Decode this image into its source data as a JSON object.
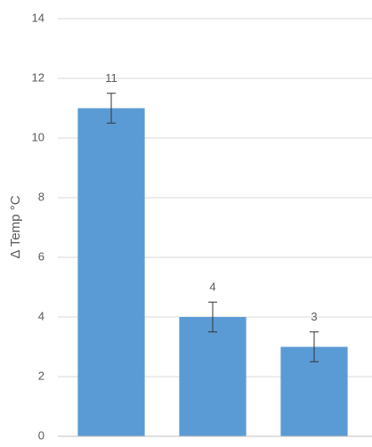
{
  "chart_data": {
    "type": "bar",
    "y_label": "Δ Temp °C",
    "categories": [
      null,
      null,
      null
    ],
    "values": [
      11,
      4,
      3
    ],
    "errors": [
      0.5,
      0.5,
      0.5
    ],
    "color": "#5b9bd5",
    "ylim": [
      0,
      14
    ],
    "yticks": [
      0,
      2,
      4,
      6,
      8,
      10,
      12,
      14
    ],
    "grid": true
  }
}
